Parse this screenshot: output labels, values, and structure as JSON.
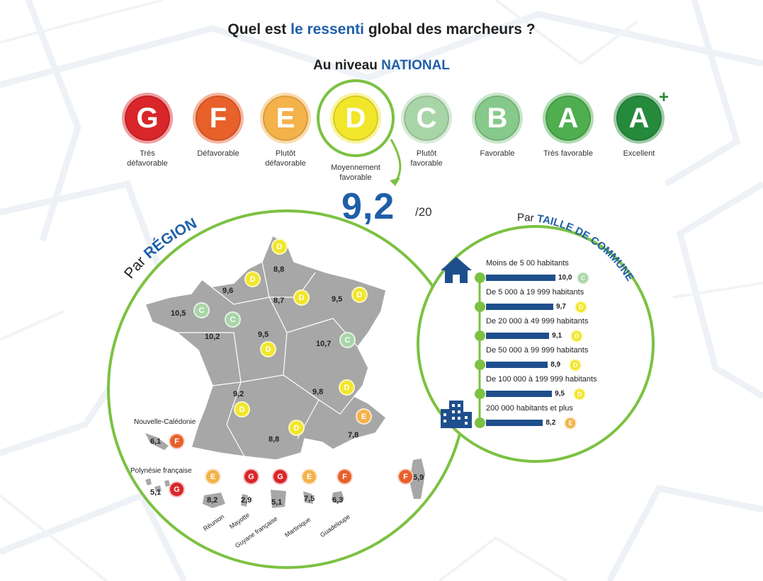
{
  "title": {
    "before": "Quel est ",
    "highlight": "le ressenti",
    "after": " global des marcheurs ?"
  },
  "subtitle": {
    "before": "Au niveau ",
    "highlight": "NATIONAL"
  },
  "colors": {
    "G": "#d9262a",
    "F": "#e8602a",
    "E": "#f4b24a",
    "D": "#f2e62a",
    "C": "#a8d5a8",
    "B": "#86c98a",
    "A": "#4fae4f",
    "A+": "#268a3c",
    "circle_border": "#7cc142",
    "accent_blue": "#1f5fa8",
    "bar": "#1e4f8c",
    "map": "#a7a7a7"
  },
  "grades": [
    {
      "letter": "G",
      "label": "Très défavorable"
    },
    {
      "letter": "F",
      "label": "Défavorable"
    },
    {
      "letter": "E",
      "label": "Plutôt défavorable"
    },
    {
      "letter": "D",
      "label": "Moyennement favorable"
    },
    {
      "letter": "C",
      "label": "Plutôt favorable"
    },
    {
      "letter": "B",
      "label": "Favorable"
    },
    {
      "letter": "A",
      "label": "Très favorable"
    },
    {
      "letter": "A",
      "sup": "+",
      "label": "Excellent"
    }
  ],
  "national_score": {
    "value": "9,2",
    "denominator": "/20"
  },
  "region": {
    "heading_prefix": "Par ",
    "heading": "RÉGION",
    "regions": [
      {
        "value": "8,8",
        "grade": "D"
      },
      {
        "value": "9,6",
        "grade": "D"
      },
      {
        "value": "8,7",
        "grade": "D"
      },
      {
        "value": "9,5",
        "grade": "D"
      },
      {
        "value": "10,5",
        "grade": "C"
      },
      {
        "value": "10,2",
        "grade": "C"
      },
      {
        "value": "9,5",
        "grade": "D"
      },
      {
        "value": "10,7",
        "grade": "C"
      },
      {
        "value": "9,2",
        "grade": "D"
      },
      {
        "value": "9,8",
        "grade": "D"
      },
      {
        "value": "8,8",
        "grade": "D"
      },
      {
        "value": "7,8",
        "grade": "E"
      }
    ],
    "overseas": [
      {
        "name": "Nouvelle-Calédonie",
        "value": "6,1",
        "grade": "F"
      },
      {
        "name": "Polynésie française",
        "value": "5,1",
        "grade": "G"
      },
      {
        "name": "Réunion",
        "value": "8,2",
        "grade": "E"
      },
      {
        "name": "Mayotte",
        "value": "2,9",
        "grade": "G"
      },
      {
        "name": "Guyane française",
        "value": "5,1",
        "grade": "G"
      },
      {
        "name": "Martinique",
        "value": "7,5",
        "grade": "E"
      },
      {
        "name": "Guadeloupe",
        "value": "6,3",
        "grade": "F"
      },
      {
        "name": "",
        "value": "5,9",
        "grade": "F"
      }
    ]
  },
  "chart_data": {
    "type": "bar",
    "title": "Par TAILLE DE COMMUNE",
    "heading_prefix": "Par ",
    "heading": "TAILLE DE COMMUNE",
    "categories": [
      "Moins de 5 00 habitants",
      "De 5 000 à 19 999 habitants",
      "De 20 000 à 49 999 habitants",
      "De 50 000 à 99 999 habitants",
      "De 100 000 à 199 999 habitants",
      "200 000 habitants et plus"
    ],
    "values": [
      10.0,
      9.7,
      9.1,
      8.9,
      9.5,
      8.2
    ],
    "labels": [
      "10,0",
      "9,7",
      "9,1",
      "8,9",
      "9,5",
      "8,2"
    ],
    "grades": [
      "C",
      "D",
      "D",
      "D",
      "D",
      "E"
    ],
    "xlim": [
      0,
      20
    ]
  }
}
